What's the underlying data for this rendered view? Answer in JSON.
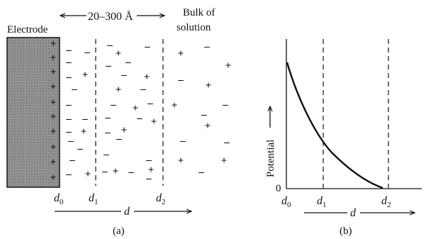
{
  "panel_a": {
    "electrode_label": "Electrode",
    "thickness_label": "20–300 Å",
    "bulk_label_line1": "Bulk of",
    "bulk_label_line2": "solution",
    "d0": "d",
    "d0_sub": "0",
    "d1": "d",
    "d1_sub": "1",
    "d2": "d",
    "d2_sub": "2",
    "d_axis": "d",
    "caption": "(a)",
    "electrode_charge_symbol": "+",
    "solution_plus_symbol": "+",
    "solution_minus_symbol": "–"
  },
  "panel_b": {
    "y_label": "Potential",
    "zero_label": "0",
    "d0": "d",
    "d0_sub": "0",
    "d1": "d",
    "d1_sub": "1",
    "d2": "d",
    "d2_sub": "2",
    "d_axis": "d",
    "caption": "(b)"
  },
  "colors": {
    "electrode_fill": "#8f8f8f",
    "ink": "#111111"
  }
}
